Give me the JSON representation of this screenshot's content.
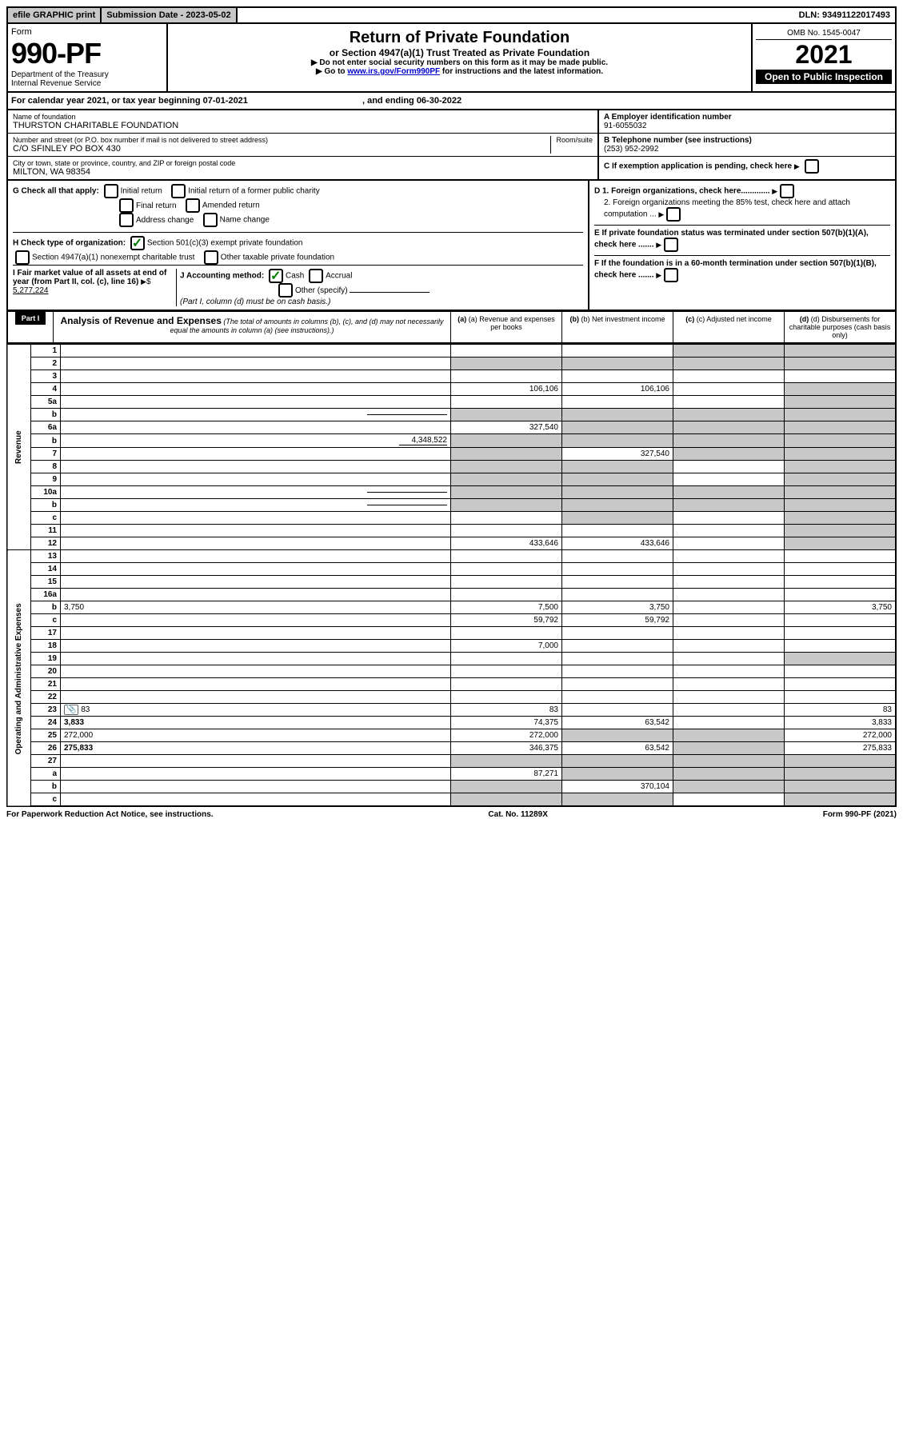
{
  "top": {
    "efile": "efile GRAPHIC print",
    "submission_label": "Submission Date - 2023-05-02",
    "dln": "DLN: 93491122017493"
  },
  "header": {
    "form_word": "Form",
    "form_num": "990-PF",
    "dept": "Department of the Treasury",
    "irs": "Internal Revenue Service",
    "title": "Return of Private Foundation",
    "subtitle": "or Section 4947(a)(1) Trust Treated as Private Foundation",
    "instr1": "▶ Do not enter social security numbers on this form as it may be made public.",
    "instr2_prefix": "▶ Go to ",
    "instr2_link": "www.irs.gov/Form990PF",
    "instr2_suffix": " for instructions and the latest information.",
    "omb": "OMB No. 1545-0047",
    "year": "2021",
    "inspection": "Open to Public Inspection"
  },
  "calyear": {
    "text": "For calendar year 2021, or tax year beginning 07-01-2021",
    "ending": ", and ending 06-30-2022"
  },
  "info": {
    "name_label": "Name of foundation",
    "name": "THURSTON CHARITABLE FOUNDATION",
    "addr_label": "Number and street (or P.O. box number if mail is not delivered to street address)",
    "room_label": "Room/suite",
    "addr": "C/O SFINLEY PO BOX 430",
    "city_label": "City or town, state or province, country, and ZIP or foreign postal code",
    "city": "MILTON, WA  98354",
    "A_label": "A Employer identification number",
    "A_val": "91-6055032",
    "B_label": "B Telephone number (see instructions)",
    "B_val": "(253) 952-2992",
    "C_label": "C If exemption application is pending, check here",
    "D1": "D 1. Foreign organizations, check here.............",
    "D2": "2. Foreign organizations meeting the 85% test, check here and attach computation ...",
    "E": "E  If private foundation status was terminated under section 507(b)(1)(A), check here .......",
    "F": "F  If the foundation is in a 60-month termination under section 507(b)(1)(B), check here .......",
    "G": "G Check all that apply:",
    "G_opts": [
      "Initial return",
      "Initial return of a former public charity",
      "Final return",
      "Amended return",
      "Address change",
      "Name change"
    ],
    "H": "H Check type of organization:",
    "H1": "Section 501(c)(3) exempt private foundation",
    "H2": "Section 4947(a)(1) nonexempt charitable trust",
    "H3": "Other taxable private foundation",
    "I": "I Fair market value of all assets at end of year (from Part II, col. (c), line 16)",
    "I_val": "5,277,224",
    "J": "J Accounting method:",
    "J_opts": [
      "Cash",
      "Accrual",
      "Other (specify)"
    ],
    "J_note": "(Part I, column (d) must be on cash basis.)"
  },
  "part1": {
    "label": "Part I",
    "title": "Analysis of Revenue and Expenses",
    "note": "(The total of amounts in columns (b), (c), and (d) may not necessarily equal the amounts in column (a) (see instructions).)",
    "cols": {
      "a": "(a) Revenue and expenses per books",
      "b": "(b) Net investment income",
      "c": "(c) Adjusted net income",
      "d": "(d) Disbursements for charitable purposes (cash basis only)"
    }
  },
  "sections": {
    "revenue": "Revenue",
    "expenses": "Operating and Administrative Expenses"
  },
  "rows": [
    {
      "n": "1",
      "d": "",
      "a": "",
      "b": "",
      "c": "",
      "shade_c": true,
      "shade_d": true
    },
    {
      "n": "2",
      "d": "",
      "a": "",
      "b": "",
      "c": "",
      "allshade": true
    },
    {
      "n": "3",
      "d": "",
      "a": "",
      "b": "",
      "c": ""
    },
    {
      "n": "4",
      "d": "",
      "a": "106,106",
      "b": "106,106",
      "c": "",
      "shade_d": true
    },
    {
      "n": "5a",
      "d": "",
      "a": "",
      "b": "",
      "c": "",
      "shade_d": true
    },
    {
      "n": "b",
      "d": "",
      "a": "",
      "b": "",
      "c": "",
      "allshade": true,
      "inline": true
    },
    {
      "n": "6a",
      "d": "",
      "a": "327,540",
      "b": "",
      "c": "",
      "shade_b": true,
      "shade_c": true,
      "shade_d": true
    },
    {
      "n": "b",
      "d": "",
      "inline_val": "4,348,522",
      "a": "",
      "b": "",
      "c": "",
      "allshade": true
    },
    {
      "n": "7",
      "d": "",
      "a": "",
      "b": "327,540",
      "c": "",
      "shade_a": true,
      "shade_c": true,
      "shade_d": true
    },
    {
      "n": "8",
      "d": "",
      "a": "",
      "b": "",
      "c": "",
      "shade_a": true,
      "shade_b": true,
      "shade_d": true
    },
    {
      "n": "9",
      "d": "",
      "a": "",
      "b": "",
      "c": "",
      "shade_a": true,
      "shade_b": true,
      "shade_d": true
    },
    {
      "n": "10a",
      "d": "",
      "a": "",
      "b": "",
      "c": "",
      "allshade": true,
      "inline": true
    },
    {
      "n": "b",
      "d": "",
      "a": "",
      "b": "",
      "c": "",
      "allshade": true,
      "inline": true
    },
    {
      "n": "c",
      "d": "",
      "a": "",
      "b": "",
      "c": "",
      "shade_b": true,
      "shade_d": true
    },
    {
      "n": "11",
      "d": "",
      "a": "",
      "b": "",
      "c": "",
      "shade_d": true
    },
    {
      "n": "12",
      "d": "",
      "a": "433,646",
      "b": "433,646",
      "c": "",
      "bold": true,
      "shade_d": true
    }
  ],
  "exp_rows": [
    {
      "n": "13",
      "d": "",
      "a": "",
      "b": "",
      "c": ""
    },
    {
      "n": "14",
      "d": "",
      "a": "",
      "b": "",
      "c": ""
    },
    {
      "n": "15",
      "d": "",
      "a": "",
      "b": "",
      "c": ""
    },
    {
      "n": "16a",
      "d": "",
      "a": "",
      "b": "",
      "c": ""
    },
    {
      "n": "b",
      "d": "3,750",
      "a": "7,500",
      "b": "3,750",
      "c": ""
    },
    {
      "n": "c",
      "d": "",
      "a": "59,792",
      "b": "59,792",
      "c": ""
    },
    {
      "n": "17",
      "d": "",
      "a": "",
      "b": "",
      "c": ""
    },
    {
      "n": "18",
      "d": "",
      "a": "7,000",
      "b": "",
      "c": ""
    },
    {
      "n": "19",
      "d": "",
      "a": "",
      "b": "",
      "c": "",
      "shade_d": true
    },
    {
      "n": "20",
      "d": "",
      "a": "",
      "b": "",
      "c": ""
    },
    {
      "n": "21",
      "d": "",
      "a": "",
      "b": "",
      "c": ""
    },
    {
      "n": "22",
      "d": "",
      "a": "",
      "b": "",
      "c": ""
    },
    {
      "n": "23",
      "d": "83",
      "a": "83",
      "b": "",
      "c": "",
      "icon": true
    },
    {
      "n": "24",
      "d": "3,833",
      "a": "74,375",
      "b": "63,542",
      "c": "",
      "bold": true
    },
    {
      "n": "25",
      "d": "272,000",
      "a": "272,000",
      "b": "",
      "c": "",
      "shade_b": true,
      "shade_c": true
    },
    {
      "n": "26",
      "d": "275,833",
      "a": "346,375",
      "b": "63,542",
      "c": "",
      "bold": true,
      "shade_c": true
    },
    {
      "n": "27",
      "d": "",
      "a": "",
      "b": "",
      "c": "",
      "allshade": true
    },
    {
      "n": "a",
      "d": "",
      "a": "87,271",
      "b": "",
      "c": "",
      "bold": true,
      "shade_b": true,
      "shade_c": true,
      "shade_d": true
    },
    {
      "n": "b",
      "d": "",
      "a": "",
      "b": "370,104",
      "c": "",
      "bold": true,
      "shade_a": true,
      "shade_c": true,
      "shade_d": true
    },
    {
      "n": "c",
      "d": "",
      "a": "",
      "b": "",
      "c": "",
      "bold": true,
      "shade_a": true,
      "shade_b": true,
      "shade_d": true
    }
  ],
  "footer": {
    "left": "For Paperwork Reduction Act Notice, see instructions.",
    "mid": "Cat. No. 11289X",
    "right": "Form 990-PF (2021)"
  }
}
